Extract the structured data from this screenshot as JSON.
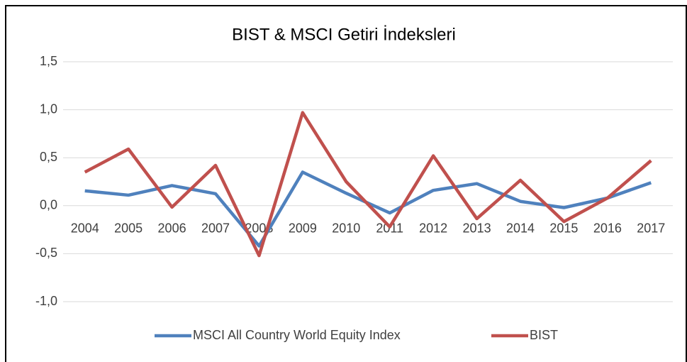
{
  "chart_data": {
    "type": "line",
    "title": "BIST & MSCI Getiri İndeksleri",
    "categories": [
      "2004",
      "2005",
      "2006",
      "2007",
      "2008",
      "2009",
      "2010",
      "2011",
      "2012",
      "2013",
      "2014",
      "2015",
      "2016",
      "2017"
    ],
    "series": [
      {
        "name": "MSCI All Country World Equity Index",
        "color": "#4f81bd",
        "values": [
          0.155,
          0.11,
          0.21,
          0.125,
          -0.42,
          0.35,
          0.13,
          -0.075,
          0.16,
          0.23,
          0.045,
          -0.02,
          0.08,
          0.24
        ]
      },
      {
        "name": "BIST",
        "color": "#c0504d",
        "values": [
          0.35,
          0.59,
          -0.015,
          0.42,
          -0.52,
          0.97,
          0.25,
          -0.22,
          0.52,
          -0.135,
          0.265,
          -0.165,
          0.08,
          0.47
        ]
      }
    ],
    "ylim": [
      -1.0,
      1.5
    ],
    "yticks": [
      {
        "value": -1.0,
        "label": "-1,0"
      },
      {
        "value": -0.5,
        "label": "-0,5"
      },
      {
        "value": 0,
        "label": "0,0"
      },
      {
        "value": 0.5,
        "label": "0,5"
      },
      {
        "value": 1.0,
        "label": "1,0"
      },
      {
        "value": 1.5,
        "label": "1,5"
      }
    ],
    "grid": true,
    "legend": "bottom"
  }
}
